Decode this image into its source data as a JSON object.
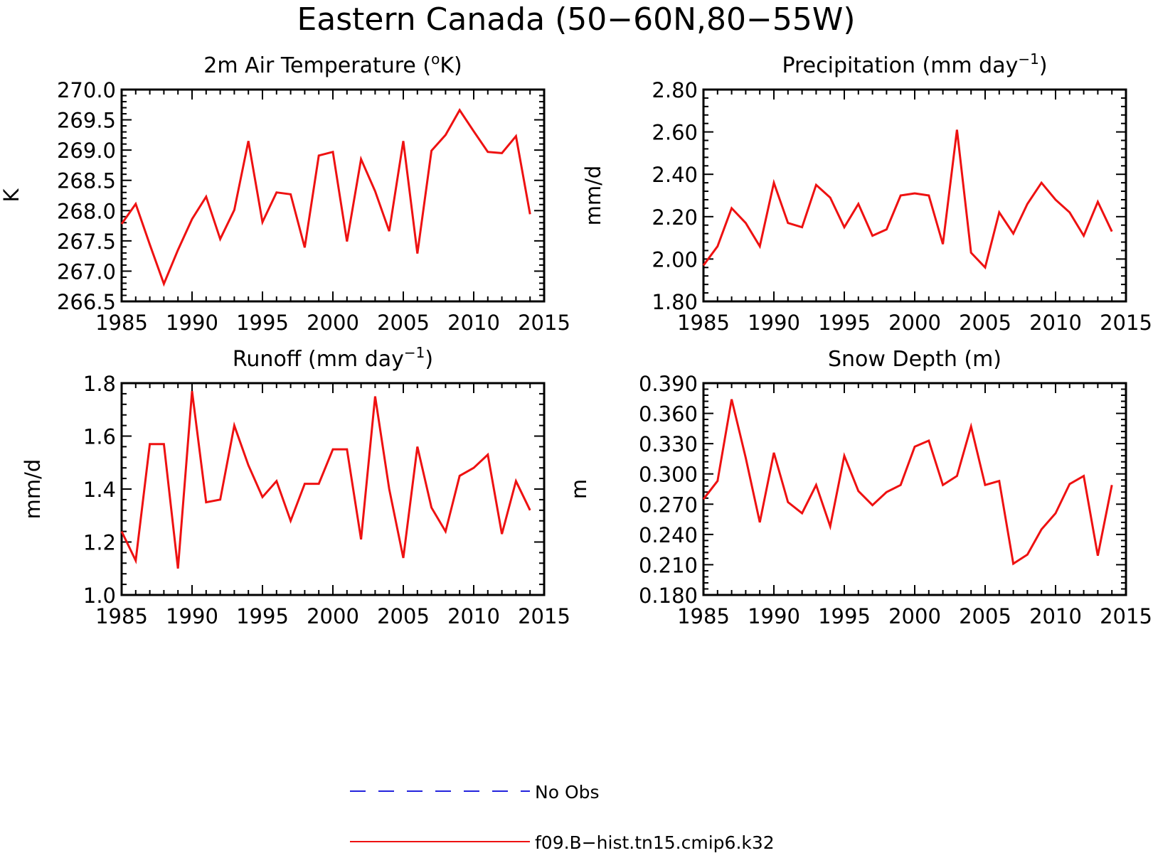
{
  "figure": {
    "title": "Eastern Canada (50−60N,80−55W)"
  },
  "legend": {
    "entries": [
      {
        "label": "No Obs",
        "color": "#2222dd",
        "style": "dashed"
      },
      {
        "label": "f09.B−hist.tn15.cmip6.k32",
        "color": "#ee1111",
        "style": "solid"
      }
    ]
  },
  "chart_data": [
    {
      "type": "line",
      "title": "2m Air Temperature (°K)",
      "title_parts": {
        "main": "2m Air Temperature (",
        "super": "o",
        "tail": "K)"
      },
      "xlabel": "",
      "ylabel": "K",
      "xlim": [
        1985,
        2015
      ],
      "ylim": [
        266.5,
        270.0
      ],
      "xticks": [
        "1985",
        "1990",
        "1995",
        "2000",
        "2005",
        "2010",
        "2015"
      ],
      "yticks": [
        "266.5",
        "267.0",
        "267.5",
        "268.0",
        "268.5",
        "269.0",
        "269.5",
        "270.0"
      ],
      "x": [
        1985,
        1986,
        1987,
        1988,
        1989,
        1990,
        1991,
        1992,
        1993,
        1994,
        1995,
        1996,
        1997,
        1998,
        1999,
        2000,
        2001,
        2002,
        2003,
        2004,
        2005,
        2006,
        2007,
        2008,
        2009,
        2010,
        2011,
        2012,
        2013,
        2014
      ],
      "series": [
        {
          "name": "f09.B−hist.tn15.cmip6.k32",
          "color": "#ee1111",
          "values": [
            267.78,
            268.11,
            267.44,
            266.79,
            267.35,
            267.86,
            268.23,
            267.53,
            268.01,
            269.15,
            267.81,
            268.3,
            268.27,
            267.39,
            268.91,
            268.97,
            267.49,
            268.85,
            268.32,
            267.66,
            269.15,
            267.29,
            268.99,
            269.25,
            269.66,
            269.31,
            268.97,
            268.95,
            269.23,
            267.94
          ]
        }
      ]
    },
    {
      "type": "line",
      "title": "Precipitation (mm day⁻¹)",
      "title_parts": {
        "main": "Precipitation (mm day",
        "super": "−1",
        "tail": ")"
      },
      "xlabel": "",
      "ylabel": "mm/d",
      "xlim": [
        1985,
        2015
      ],
      "ylim": [
        1.8,
        2.8
      ],
      "xticks": [
        "1985",
        "1990",
        "1995",
        "2000",
        "2005",
        "2010",
        "2015"
      ],
      "yticks": [
        "1.80",
        "2.00",
        "2.20",
        "2.40",
        "2.60",
        "2.80"
      ],
      "x": [
        1985,
        1986,
        1987,
        1988,
        1989,
        1990,
        1991,
        1992,
        1993,
        1994,
        1995,
        1996,
        1997,
        1998,
        1999,
        2000,
        2001,
        2002,
        2003,
        2004,
        2005,
        2006,
        2007,
        2008,
        2009,
        2010,
        2011,
        2012,
        2013,
        2014
      ],
      "series": [
        {
          "name": "f09.B−hist.tn15.cmip6.k32",
          "color": "#ee1111",
          "values": [
            1.97,
            2.06,
            2.24,
            2.17,
            2.06,
            2.36,
            2.17,
            2.15,
            2.35,
            2.29,
            2.15,
            2.26,
            2.11,
            2.14,
            2.3,
            2.31,
            2.3,
            2.07,
            2.61,
            2.03,
            1.96,
            2.22,
            2.12,
            2.26,
            2.36,
            2.28,
            2.22,
            2.11,
            2.27,
            2.13
          ]
        }
      ]
    },
    {
      "type": "line",
      "title": "Runoff (mm day⁻¹)",
      "title_parts": {
        "main": "Runoff (mm day",
        "super": "−1",
        "tail": ")"
      },
      "xlabel": "",
      "ylabel": "mm/d",
      "xlim": [
        1985,
        2015
      ],
      "ylim": [
        1.0,
        1.8
      ],
      "xticks": [
        "1985",
        "1990",
        "1995",
        "2000",
        "2005",
        "2010",
        "2015"
      ],
      "yticks": [
        "1.0",
        "1.2",
        "1.4",
        "1.6",
        "1.8"
      ],
      "x": [
        1985,
        1986,
        1987,
        1988,
        1989,
        1990,
        1991,
        1992,
        1993,
        1994,
        1995,
        1996,
        1997,
        1998,
        1999,
        2000,
        2001,
        2002,
        2003,
        2004,
        2005,
        2006,
        2007,
        2008,
        2009,
        2010,
        2011,
        2012,
        2013,
        2014
      ],
      "series": [
        {
          "name": "f09.B−hist.tn15.cmip6.k32",
          "color": "#ee1111",
          "values": [
            1.24,
            1.13,
            1.57,
            1.57,
            1.1,
            1.77,
            1.35,
            1.36,
            1.64,
            1.49,
            1.37,
            1.43,
            1.28,
            1.42,
            1.42,
            1.55,
            1.55,
            1.21,
            1.75,
            1.4,
            1.14,
            1.56,
            1.33,
            1.24,
            1.45,
            1.48,
            1.53,
            1.23,
            1.43,
            1.32
          ]
        }
      ]
    },
    {
      "type": "line",
      "title": "Snow Depth (m)",
      "title_parts": {
        "main": "Snow Depth (m)",
        "super": "",
        "tail": ""
      },
      "xlabel": "",
      "ylabel": "m",
      "xlim": [
        1985,
        2015
      ],
      "ylim": [
        0.18,
        0.39
      ],
      "xticks": [
        "1985",
        "1990",
        "1995",
        "2000",
        "2005",
        "2010",
        "2015"
      ],
      "yticks": [
        "0.180",
        "0.210",
        "0.240",
        "0.270",
        "0.300",
        "0.330",
        "0.360",
        "0.390"
      ],
      "x": [
        1985,
        1986,
        1987,
        1988,
        1989,
        1990,
        1991,
        1992,
        1993,
        1994,
        1995,
        1996,
        1997,
        1998,
        1999,
        2000,
        2001,
        2002,
        2003,
        2004,
        2005,
        2006,
        2007,
        2008,
        2009,
        2010,
        2011,
        2012,
        2013,
        2014
      ],
      "series": [
        {
          "name": "f09.B−hist.tn15.cmip6.k32",
          "color": "#ee1111",
          "values": [
            0.275,
            0.293,
            0.374,
            0.316,
            0.252,
            0.321,
            0.272,
            0.261,
            0.289,
            0.248,
            0.318,
            0.283,
            0.269,
            0.282,
            0.289,
            0.327,
            0.333,
            0.289,
            0.298,
            0.347,
            0.289,
            0.293,
            0.211,
            0.22,
            0.245,
            0.261,
            0.29,
            0.298,
            0.219,
            0.289
          ]
        }
      ]
    }
  ]
}
